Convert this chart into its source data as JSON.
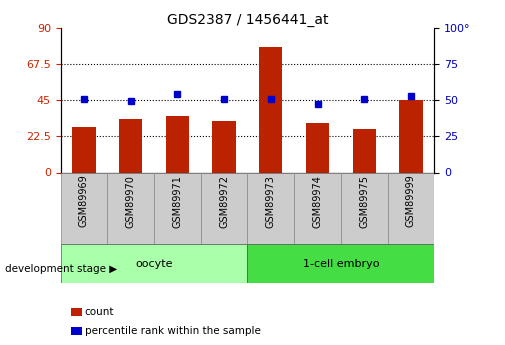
{
  "title": "GDS2387 / 1456441_at",
  "samples": [
    "GSM89969",
    "GSM89970",
    "GSM89971",
    "GSM89972",
    "GSM89973",
    "GSM89974",
    "GSM89975",
    "GSM89999"
  ],
  "counts": [
    28,
    33,
    35,
    32,
    78,
    31,
    27,
    45
  ],
  "percentiles": [
    51,
    49,
    54,
    51,
    51,
    47,
    51,
    53
  ],
  "bar_color": "#BB2200",
  "dot_color": "#0000CC",
  "left_ylim": [
    0,
    90
  ],
  "right_ylim": [
    0,
    100
  ],
  "left_yticks": [
    0,
    22.5,
    45,
    67.5,
    90
  ],
  "right_yticks": [
    0,
    25,
    50,
    75,
    100
  ],
  "grid_lines": [
    22.5,
    45,
    67.5
  ],
  "groups": [
    {
      "label": "oocyte",
      "indices": [
        0,
        1,
        2,
        3
      ],
      "color": "#AAFFAA"
    },
    {
      "label": "1-cell embryo",
      "indices": [
        4,
        5,
        6,
        7
      ],
      "color": "#44DD44"
    }
  ],
  "stage_label": "development stage",
  "legend_count_label": "count",
  "legend_pct_label": "percentile rank within the sample",
  "bar_width": 0.5,
  "background_color": "#FFFFFF",
  "tick_label_color_left": "#CC2200",
  "tick_label_color_right": "#0000BB"
}
